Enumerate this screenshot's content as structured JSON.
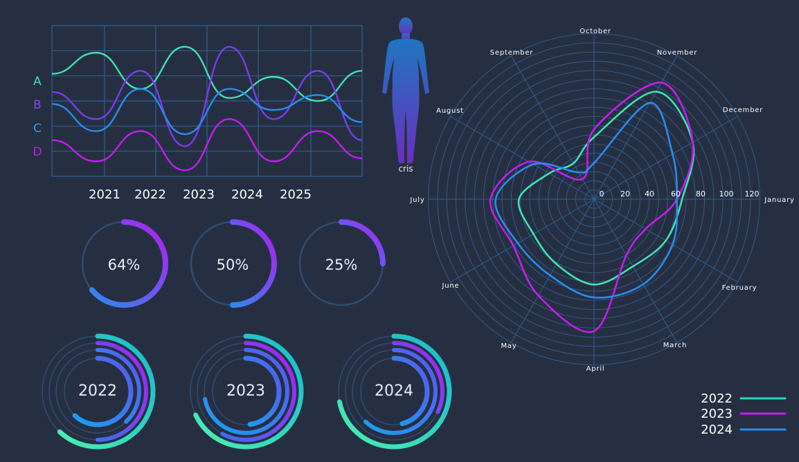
{
  "colors": {
    "background": "#262f41",
    "grid": "#2f5f96",
    "track": "#2e4c74",
    "teal": "#3fe3b4",
    "magenta": "#c41df0",
    "blue": "#2a8cf0",
    "purple": "#7b3cf0",
    "cyan": "#17b8cf",
    "text": "#ffffff",
    "label": "#e6ecf6"
  },
  "figure": {
    "label": "cris"
  },
  "chart_data": [
    {
      "type": "line",
      "x_ticks": [
        "2021",
        "2022",
        "2023",
        "2024",
        "2025"
      ],
      "ylim": [
        0,
        100
      ],
      "series": [
        {
          "name": "A",
          "color": "teal",
          "values": [
            68,
            82,
            58,
            86,
            52,
            66,
            50,
            70
          ]
        },
        {
          "name": "B",
          "color": "purple",
          "values": [
            56,
            38,
            70,
            20,
            86,
            38,
            70,
            24
          ]
        },
        {
          "name": "C",
          "color": "blue",
          "values": [
            48,
            30,
            58,
            28,
            58,
            44,
            54,
            36
          ]
        },
        {
          "name": "D",
          "color": "magenta",
          "values": [
            24,
            10,
            30,
            4,
            38,
            10,
            30,
            12
          ]
        }
      ]
    },
    {
      "type": "pie",
      "subtype": "progress-rings",
      "items": [
        {
          "label": "64%",
          "value": 64
        },
        {
          "label": "50%",
          "value": 50
        },
        {
          "label": "25%",
          "value": 25
        }
      ]
    },
    {
      "type": "pie",
      "subtype": "concentric-rings",
      "items": [
        {
          "label": "2022",
          "rings": [
            62,
            50,
            38,
            62
          ]
        },
        {
          "label": "2023",
          "rings": [
            68,
            58,
            72,
            48
          ]
        },
        {
          "label": "2024",
          "rings": [
            72,
            32,
            62,
            46
          ]
        }
      ]
    },
    {
      "type": "line",
      "subtype": "polar",
      "categories": [
        "January",
        "February",
        "March",
        "April",
        "May",
        "June",
        "July",
        "August",
        "September",
        "October",
        "November",
        "December"
      ],
      "radial_ticks": [
        "0",
        "20",
        "40",
        "60",
        "80",
        "100",
        "120"
      ],
      "rlim": [
        0,
        120
      ],
      "series": [
        {
          "name": "2022",
          "color": "teal",
          "values": [
            68,
            64,
            60,
            66,
            58,
            54,
            58,
            40,
            32,
            48,
            96,
            88
          ]
        },
        {
          "name": "2023",
          "color": "magenta",
          "values": [
            64,
            46,
            50,
            102,
            86,
            72,
            80,
            58,
            18,
            54,
            104,
            88
          ]
        },
        {
          "name": "2024",
          "color": "blue",
          "values": [
            64,
            70,
            76,
            76,
            68,
            68,
            76,
            54,
            24,
            28,
            86,
            70
          ]
        }
      ],
      "legend": "bottom-right"
    }
  ]
}
